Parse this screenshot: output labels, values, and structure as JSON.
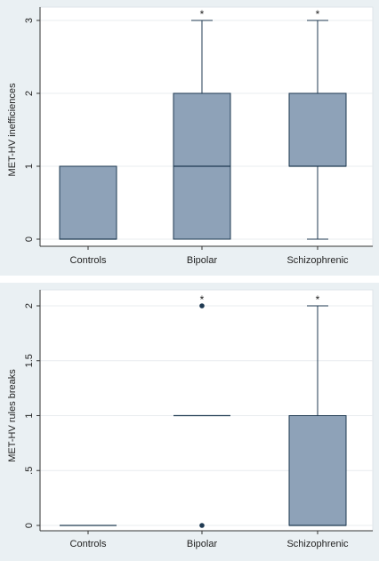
{
  "chart_data": [
    {
      "type": "box",
      "ylabel": "MET-HV inefficiences",
      "categories": [
        "Controls",
        "Bipolar",
        "Schizophrenic"
      ],
      "yticks": [
        {
          "value": 0,
          "label": "0"
        },
        {
          "value": 1,
          "label": "1"
        },
        {
          "value": 2,
          "label": "2"
        },
        {
          "value": 3,
          "label": "3"
        }
      ],
      "ylim": [
        0,
        3
      ],
      "boxes": [
        {
          "category": "Controls",
          "min": 0,
          "q1": 0,
          "median": 0,
          "q3": 1,
          "max": 1,
          "outliers": [],
          "marker": ""
        },
        {
          "category": "Bipolar",
          "min": 0,
          "q1": 0,
          "median": 1,
          "q3": 2,
          "max": 3,
          "outliers": [],
          "marker": "*"
        },
        {
          "category": "Schizophrenic",
          "min": 0,
          "q1": 1,
          "median": 1,
          "q3": 2,
          "max": 3,
          "outliers": [],
          "marker": "*"
        }
      ],
      "grid": true,
      "box_color": "#8ea2b8"
    },
    {
      "type": "box",
      "ylabel": "MET-HV rules breaks",
      "categories": [
        "Controls",
        "Bipolar",
        "Schizophrenic"
      ],
      "yticks": [
        {
          "value": 0,
          "label": "0"
        },
        {
          "value": 0.5,
          "label": ".5"
        },
        {
          "value": 1,
          "label": "1"
        },
        {
          "value": 1.5,
          "label": "1.5"
        },
        {
          "value": 2,
          "label": "2"
        }
      ],
      "ylim": [
        0,
        2
      ],
      "boxes": [
        {
          "category": "Controls",
          "min": 0,
          "q1": 0,
          "median": 0,
          "q3": 0,
          "max": 0,
          "outliers": [],
          "marker": ""
        },
        {
          "category": "Bipolar",
          "min": 1,
          "q1": 1,
          "median": 1,
          "q3": 1,
          "max": 1,
          "outliers": [
            0,
            2
          ],
          "marker": "*"
        },
        {
          "category": "Schizophrenic",
          "min": 0,
          "q1": 0,
          "median": 0,
          "q3": 1,
          "max": 2,
          "outliers": [],
          "marker": "*"
        }
      ],
      "grid": true,
      "box_color": "#8ea2b8"
    }
  ]
}
